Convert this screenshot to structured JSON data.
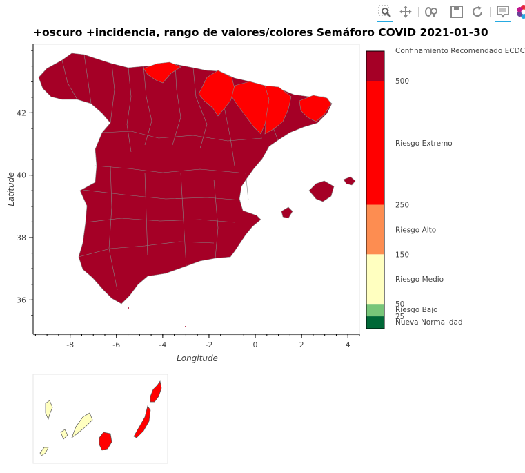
{
  "toolbar": {
    "tools": [
      {
        "name": "box-zoom",
        "active": true
      },
      {
        "name": "pan",
        "active": false
      },
      {
        "name": "wheel-zoom",
        "active": false
      },
      {
        "name": "save",
        "active": false
      },
      {
        "name": "reset",
        "active": false
      },
      {
        "name": "hover",
        "active": true
      },
      {
        "name": "bokeh-logo",
        "active": false
      }
    ]
  },
  "title": "+oscuro +incidencia, rango de valores/colores Semáforo COVID  2021-01-30",
  "chart_data": {
    "type": "choropleth",
    "xlabel": "Longitude",
    "ylabel": "Latitude",
    "xlim": [
      -9.6,
      4.5
    ],
    "ylim": [
      34.9,
      44.2
    ],
    "xticks": [
      "-8",
      "-6",
      "-4",
      "-2",
      "0",
      "2",
      "4"
    ],
    "yticks": [
      "36",
      "38",
      "40",
      "42"
    ],
    "colorbar": {
      "segments": [
        {
          "label": "Nueva Normalidad",
          "from": 0,
          "to": 25,
          "color": "#006837"
        },
        {
          "label": "Riesgo Bajo",
          "from": 25,
          "to": 50,
          "color": "#78c679"
        },
        {
          "label": "Riesgo Medio",
          "from": 50,
          "to": 150,
          "color": "#ffffc0"
        },
        {
          "label": "Riesgo Alto",
          "from": 150,
          "to": 250,
          "color": "#fd8d51"
        },
        {
          "label": "Riesgo Extremo",
          "from": 250,
          "to": 500,
          "color": "#ff0000"
        },
        {
          "label": "Confinamiento Recomendado ECDC",
          "from": 500,
          "to": 560,
          "color": "#a50026"
        }
      ],
      "ticks": [
        "25",
        "50",
        "150",
        "250",
        "500"
      ]
    },
    "regions": [
      {
        "name": "Peninsula (most provinces)",
        "category": "Confinamiento Recomendado ECDC"
      },
      {
        "name": "Cantabria",
        "category": "Riesgo Extremo"
      },
      {
        "name": "Navarra / Alava",
        "category": "Riesgo Extremo"
      },
      {
        "name": "Huesca",
        "category": "Riesgo Extremo"
      },
      {
        "name": "Lleida",
        "category": "Riesgo Extremo"
      },
      {
        "name": "Girona",
        "category": "Riesgo Extremo"
      },
      {
        "name": "Islas Baleares",
        "category": "Confinamiento Recomendado ECDC"
      },
      {
        "name": "Canarias - Las Palmas",
        "category": "Riesgo Extremo"
      },
      {
        "name": "Canarias - Santa Cruz de Tenerife",
        "category": "Riesgo Medio"
      }
    ]
  }
}
